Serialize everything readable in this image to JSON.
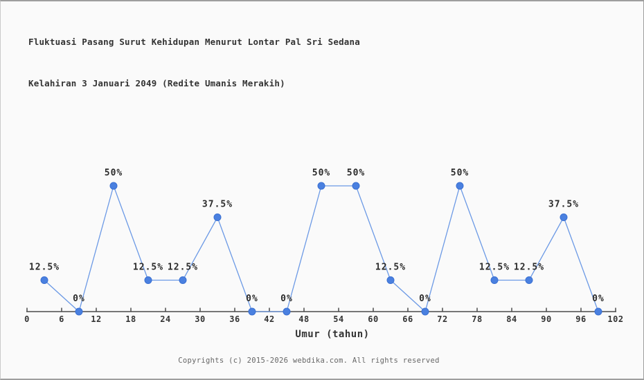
{
  "title": {
    "line1": "Fluktuasi Pasang Surut Kehidupan Menurut Lontar Pal Sri Sedana",
    "line2": "Kelahiran 3 Januari 2049 (Redite Umanis Merakih)"
  },
  "chart_data": {
    "type": "line",
    "x": [
      3,
      9,
      15,
      21,
      27,
      33,
      39,
      45,
      51,
      57,
      63,
      69,
      75,
      81,
      87,
      93,
      99
    ],
    "values": [
      12.5,
      0,
      50,
      12.5,
      12.5,
      37.5,
      0,
      0,
      50,
      50,
      12.5,
      0,
      50,
      12.5,
      12.5,
      37.5,
      0
    ],
    "point_labels": [
      "12.5%",
      "0%",
      "50%",
      "12.5%",
      "12.5%",
      "37.5%",
      "0%",
      "0%",
      "50%",
      "50%",
      "12.5%",
      "0%",
      "50%",
      "12.5%",
      "12.5%",
      "37.5%",
      "0%"
    ],
    "x_ticks": [
      0,
      6,
      12,
      18,
      24,
      30,
      36,
      42,
      48,
      54,
      60,
      66,
      72,
      78,
      84,
      90,
      96,
      102
    ],
    "xlim": [
      0,
      102
    ],
    "ylim": [
      0,
      100
    ],
    "xlabel": "Umur (tahun)",
    "ylabel": "",
    "grid": false,
    "legend": false,
    "colors": {
      "marker": "#4a80e0",
      "marker_edge": "#3a70d2",
      "line": "#6b99e5",
      "axis": "#4a4a4a"
    }
  },
  "footer": {
    "copyright": "Copyrights (c) 2015-2026 webdika.com. All rights reserved"
  }
}
